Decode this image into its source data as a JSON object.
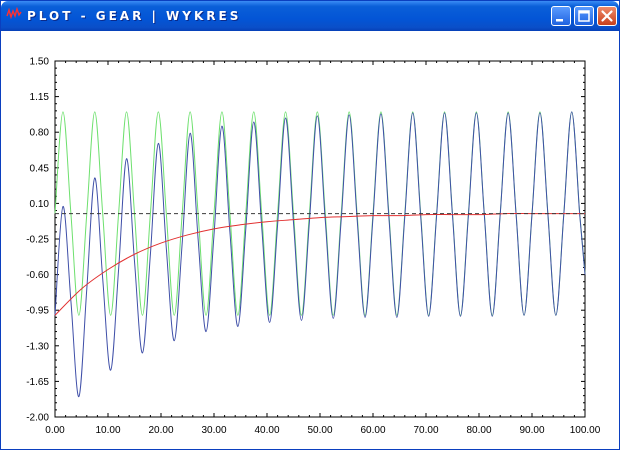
{
  "window": {
    "title": "PLOT - GEAR | WYKRES",
    "icon": "waveform-icon",
    "buttons": [
      "minimize-icon",
      "maximize-icon",
      "close-icon"
    ]
  },
  "chart_data": {
    "type": "line",
    "xlim": [
      0,
      100
    ],
    "ylim": [
      -2.0,
      1.5
    ],
    "x_ticks": [
      "0.00",
      "10.00",
      "20.00",
      "30.00",
      "40.00",
      "50.00",
      "60.00",
      "70.00",
      "80.00",
      "90.00",
      "100.00"
    ],
    "y_ticks": [
      "1.50",
      "1.15",
      "0.80",
      "0.45",
      "0.10",
      "-0.25",
      "-0.60",
      "-0.95",
      "-1.30",
      "-1.65",
      "-2.00"
    ],
    "grid": false,
    "legend": "none",
    "series": [
      {
        "color": "#6ee06e",
        "x": [
          0,
          1.5,
          3,
          4.5,
          6,
          7.5,
          9,
          10.5,
          12,
          13.5,
          15,
          16.5,
          18,
          19.5,
          21,
          22.5,
          24,
          25.5,
          27,
          28.5,
          30,
          31.5,
          33,
          34.5,
          36,
          37.5,
          39,
          40.5,
          42,
          43.5,
          45,
          46.5,
          48,
          49.5,
          51,
          52.5,
          54,
          55.5,
          57,
          58.5,
          60,
          61.5,
          63,
          64.5,
          66,
          67.5,
          69,
          70.5,
          72,
          73.5,
          75,
          76.5,
          78,
          79.5,
          81,
          82.5,
          84,
          85.5,
          87,
          88.5,
          90,
          91.5,
          93,
          94.5,
          96,
          97.5,
          99,
          100
        ],
        "y": [
          0.0,
          1.0,
          0.0,
          -1.0,
          0.0,
          1.0,
          0.0,
          -1.0,
          0.0,
          1.0,
          0.0,
          -1.0,
          0.0,
          1.0,
          0.0,
          -1.0,
          0.0,
          1.0,
          0.0,
          -1.0,
          0.0,
          1.0,
          0.0,
          -1.0,
          0.0,
          1.0,
          0.0,
          -1.0,
          0.0,
          1.0,
          0.0,
          -1.0,
          0.0,
          1.0,
          0.0,
          -1.0,
          0.0,
          1.0,
          0.0,
          -1.0,
          0.0,
          1.0,
          0.0,
          -1.0,
          0.0,
          1.0,
          0.0,
          -1.0,
          0.0,
          1.0,
          0.0,
          -1.0,
          0.0,
          1.0,
          0.0,
          -1.0,
          0.0,
          1.0,
          0.0,
          -1.0,
          0.0,
          1.0,
          0.0,
          -1.0,
          0.0,
          1.0,
          0.0,
          -0.59
        ]
      },
      {
        "color": "#3f4fa8",
        "x": [
          0,
          1.5,
          3,
          4.5,
          6,
          7.5,
          9,
          10.5,
          12,
          13.5,
          15,
          16.5,
          18,
          19.5,
          21,
          22.5,
          24,
          25.5,
          27,
          28.5,
          30,
          31.5,
          33,
          34.5,
          36,
          37.5,
          39,
          40.5,
          42,
          43.5,
          45,
          46.5,
          48,
          49.5,
          51,
          52.5,
          54,
          55.5,
          57,
          58.5,
          60,
          61.5,
          63,
          64.5,
          66,
          67.5,
          69,
          70.5,
          72,
          73.5,
          75,
          76.5,
          78,
          79.5,
          81,
          82.5,
          84,
          85.5,
          87,
          88.5,
          90,
          91.5,
          93,
          94.5,
          96,
          97.5,
          99,
          100
        ],
        "y": [
          -1.0,
          0.07,
          -0.86,
          -1.8,
          -0.74,
          0.35,
          -0.64,
          -1.54,
          -0.55,
          0.54,
          -0.47,
          -1.37,
          -0.4,
          0.69,
          -0.34,
          -1.25,
          -0.29,
          0.79,
          -0.25,
          -1.16,
          -0.21,
          0.86,
          -0.18,
          -1.11,
          -0.15,
          0.9,
          -0.13,
          -1.07,
          -0.11,
          0.94,
          -0.09,
          -1.05,
          -0.08,
          0.96,
          -0.07,
          -1.03,
          -0.06,
          0.97,
          -0.05,
          -1.02,
          -0.04,
          0.98,
          -0.04,
          -1.02,
          -0.03,
          0.99,
          -0.03,
          -1.01,
          -0.02,
          0.99,
          -0.02,
          -1.01,
          -0.02,
          0.99,
          -0.01,
          -1.01,
          -0.01,
          0.99,
          -0.01,
          -1.0,
          -0.01,
          0.99,
          -0.01,
          -1.0,
          -0.01,
          1.0,
          -0.01,
          -0.6
        ]
      },
      {
        "color": "#e23030",
        "x": [
          0,
          5,
          10,
          15,
          20,
          25,
          30,
          35,
          40,
          45,
          50,
          55,
          60,
          65,
          70,
          75,
          80,
          85,
          90,
          95,
          100
        ],
        "y": [
          -1.0,
          -0.74,
          -0.55,
          -0.4,
          -0.29,
          -0.21,
          -0.15,
          -0.11,
          -0.08,
          -0.06,
          -0.04,
          -0.03,
          -0.02,
          -0.02,
          -0.01,
          -0.01,
          -0.01,
          -0.0,
          -0.0,
          -0.0,
          -0.0
        ]
      },
      {
        "color": "#3a3a3a",
        "dashed": true,
        "x": [
          0,
          100
        ],
        "y": [
          0.0,
          0.0
        ]
      }
    ]
  }
}
